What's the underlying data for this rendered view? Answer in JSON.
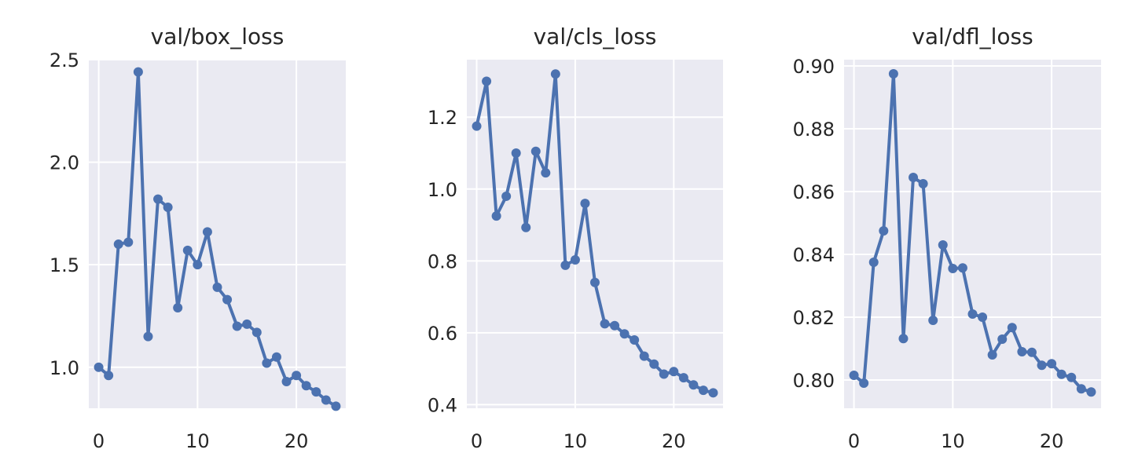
{
  "chart_data": [
    {
      "type": "line",
      "title": "val/box_loss",
      "xlabel": "",
      "ylabel": "",
      "xlim": [
        -1,
        25
      ],
      "ylim": [
        0.8,
        2.5
      ],
      "xticks": [
        0,
        10,
        20
      ],
      "yticks": [
        1.0,
        1.5,
        2.0,
        2.5
      ],
      "ytick_labels": [
        "1.0",
        "1.5",
        "2.0",
        "2.5"
      ],
      "x": [
        0,
        1,
        2,
        3,
        4,
        5,
        6,
        7,
        8,
        9,
        10,
        11,
        12,
        13,
        14,
        15,
        16,
        17,
        18,
        19,
        20,
        21,
        22,
        23,
        24
      ],
      "y": [
        1.0,
        0.96,
        1.6,
        1.61,
        2.44,
        1.15,
        1.82,
        1.78,
        1.29,
        1.57,
        1.5,
        1.66,
        1.39,
        1.33,
        1.2,
        1.21,
        1.17,
        1.02,
        1.05,
        0.93,
        0.96,
        0.91,
        0.88,
        0.84,
        0.81
      ],
      "grid": true,
      "color": "#4c72b0"
    },
    {
      "type": "line",
      "title": "val/cls_loss",
      "xlabel": "",
      "ylabel": "",
      "xlim": [
        -1,
        25
      ],
      "ylim": [
        0.39,
        1.36
      ],
      "xticks": [
        0,
        10,
        20
      ],
      "yticks": [
        0.4,
        0.6,
        0.8,
        1.0,
        1.2
      ],
      "ytick_labels": [
        "0.4",
        "0.6",
        "0.8",
        "1.0",
        "1.2"
      ],
      "x": [
        0,
        1,
        2,
        3,
        4,
        5,
        6,
        7,
        8,
        9,
        10,
        11,
        12,
        13,
        14,
        15,
        16,
        17,
        18,
        19,
        20,
        21,
        22,
        23,
        24
      ],
      "y": [
        1.175,
        1.3,
        0.925,
        0.98,
        1.1,
        0.893,
        1.105,
        1.045,
        1.32,
        0.788,
        0.803,
        0.96,
        0.74,
        0.625,
        0.62,
        0.597,
        0.58,
        0.535,
        0.513,
        0.485,
        0.492,
        0.475,
        0.455,
        0.44,
        0.433
      ],
      "grid": true,
      "color": "#4c72b0"
    },
    {
      "type": "line",
      "title": "val/dfl_loss",
      "xlabel": "",
      "ylabel": "",
      "xlim": [
        -1,
        25
      ],
      "ylim": [
        0.791,
        0.902
      ],
      "xticks": [
        0,
        10,
        20
      ],
      "yticks": [
        0.8,
        0.82,
        0.84,
        0.86,
        0.88,
        0.9
      ],
      "ytick_labels": [
        "0.80",
        "0.82",
        "0.84",
        "0.86",
        "0.88",
        "0.90"
      ],
      "x": [
        0,
        1,
        2,
        3,
        4,
        5,
        6,
        7,
        8,
        9,
        10,
        11,
        12,
        13,
        14,
        15,
        16,
        17,
        18,
        19,
        20,
        21,
        22,
        23,
        24
      ],
      "y": [
        0.8015,
        0.799,
        0.8375,
        0.8475,
        0.8975,
        0.8132,
        0.8645,
        0.8625,
        0.819,
        0.843,
        0.8355,
        0.8357,
        0.821,
        0.82,
        0.808,
        0.813,
        0.8167,
        0.809,
        0.8088,
        0.8047,
        0.8052,
        0.8018,
        0.8008,
        0.7972,
        0.7962
      ],
      "grid": true,
      "color": "#4c72b0"
    }
  ]
}
